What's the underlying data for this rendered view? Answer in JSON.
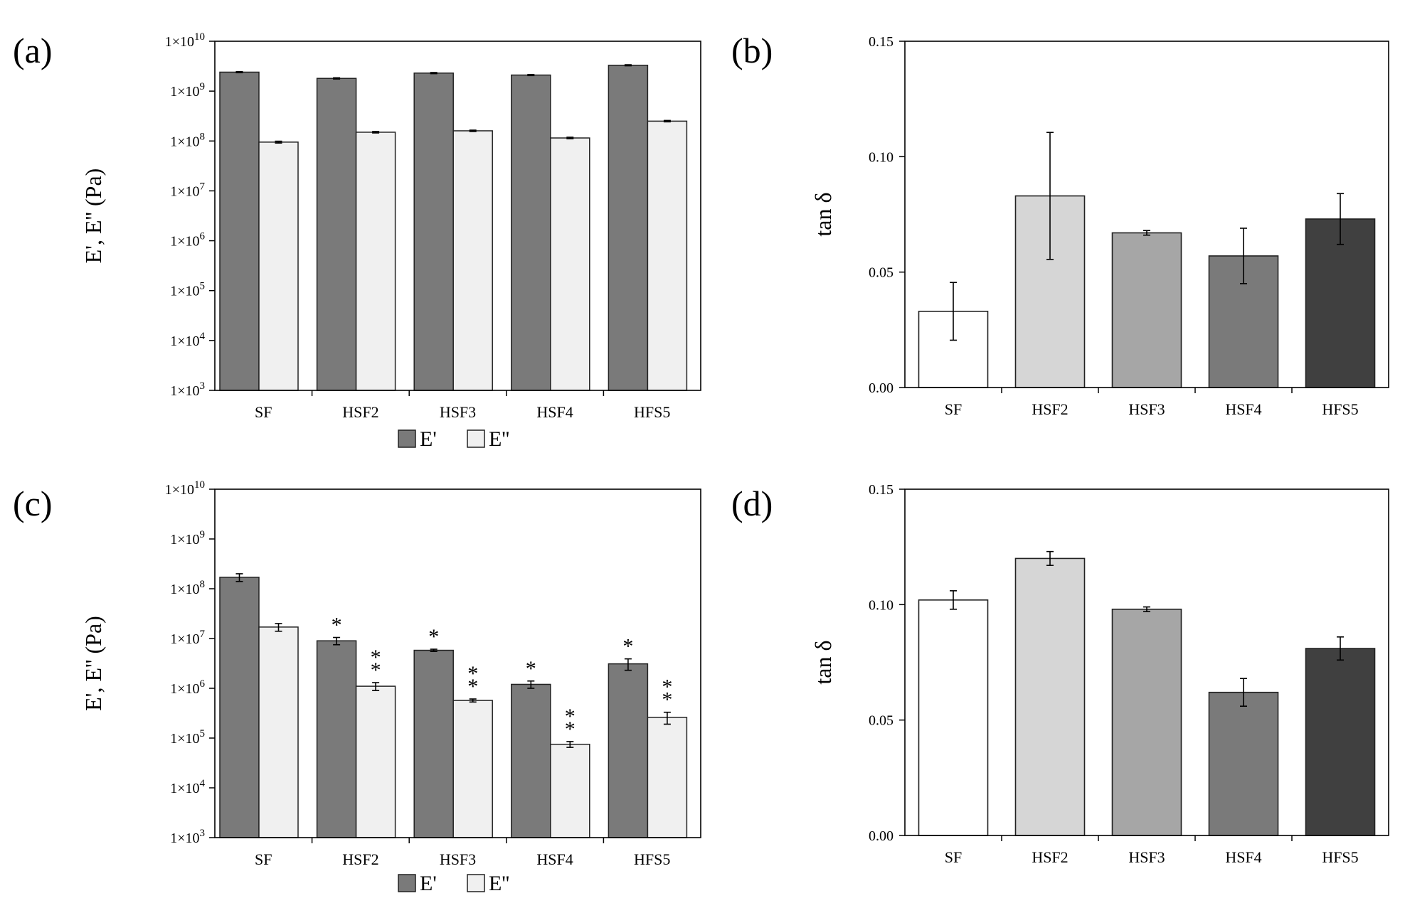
{
  "figure": {
    "charts": [
      {
        "id": "a",
        "label": "(a)",
        "kind": "log",
        "ylabel": "E', E'' (Pa)",
        "legend": [
          "E'",
          "E''"
        ],
        "legend_colors": [
          "#7a7a7a",
          "#f0f0f0"
        ]
      },
      {
        "id": "b",
        "label": "(b)",
        "kind": "linear",
        "ylabel": "tan δ",
        "colors": [
          "#ffffff",
          "#d6d6d6",
          "#a6a6a6",
          "#7a7a7a",
          "#404040"
        ]
      },
      {
        "id": "c",
        "label": "(c)",
        "kind": "log",
        "ylabel": "E', E'' (Pa)",
        "legend": [
          "E'",
          "E''"
        ],
        "legend_colors": [
          "#7a7a7a",
          "#f0f0f0"
        ]
      },
      {
        "id": "d",
        "label": "(d)",
        "kind": "linear",
        "ylabel": "tan δ",
        "colors": [
          "#ffffff",
          "#d6d6d6",
          "#a6a6a6",
          "#7a7a7a",
          "#404040"
        ]
      }
    ]
  },
  "chart_data": [
    {
      "panel": "(a)",
      "type": "bar",
      "title": "",
      "categories": [
        "SF",
        "HSF2",
        "HSF3",
        "HSF4",
        "HFS5"
      ],
      "ylabel": "E', E'' (Pa)",
      "yscale": "log",
      "ylim": [
        1000,
        10000000000
      ],
      "yticks_exp": [
        3,
        4,
        5,
        6,
        7,
        8,
        9,
        10
      ],
      "legend_position": "bottom",
      "series": [
        {
          "name": "E'",
          "values": [
            2400000000,
            1800000000,
            2300000000,
            2100000000,
            3300000000
          ],
          "errors": [
            60000000,
            50000000,
            60000000,
            50000000,
            80000000
          ]
        },
        {
          "name": "E''",
          "values": [
            95000000,
            150000000,
            160000000,
            115000000,
            250000000
          ],
          "errors": [
            4000000,
            5000000,
            5000000,
            4000000,
            8000000
          ]
        }
      ]
    },
    {
      "panel": "(b)",
      "type": "bar",
      "title": "",
      "categories": [
        "SF",
        "HSF2",
        "HSF3",
        "HSF4",
        "HFS5"
      ],
      "ylabel": "tan δ",
      "ylim": [
        0,
        0.15
      ],
      "yticks": [
        "0.00",
        "0.05",
        "0.10",
        "0.15"
      ],
      "values": [
        0.033,
        0.083,
        0.067,
        0.057,
        0.073
      ],
      "errors": [
        0.0125,
        0.0275,
        0.001,
        0.012,
        0.011
      ]
    },
    {
      "panel": "(c)",
      "type": "bar",
      "title": "",
      "categories": [
        "SF",
        "HSF2",
        "HSF3",
        "HSF4",
        "HFS5"
      ],
      "ylabel": "E', E'' (Pa)",
      "yscale": "log",
      "ylim": [
        1000,
        10000000000
      ],
      "yticks_exp": [
        3,
        4,
        5,
        6,
        7,
        8,
        9,
        10
      ],
      "legend_position": "bottom",
      "series": [
        {
          "name": "E'",
          "values": [
            170000000,
            9000000,
            5800000,
            1200000,
            3100000
          ],
          "errors": [
            30000000,
            1500000,
            300000,
            200000,
            800000
          ],
          "annotations": [
            "",
            "*",
            "*",
            "*",
            "*"
          ]
        },
        {
          "name": "E''",
          "values": [
            17000000,
            1100000,
            570000,
            75000,
            260000
          ],
          "errors": [
            3000000,
            200000,
            40000,
            10000,
            70000
          ],
          "annotations": [
            "",
            "**",
            "**",
            "**",
            "**"
          ]
        }
      ]
    },
    {
      "panel": "(d)",
      "type": "bar",
      "title": "",
      "categories": [
        "SF",
        "HSF2",
        "HSF3",
        "HSF4",
        "HFS5"
      ],
      "ylabel": "tan δ",
      "ylim": [
        0,
        0.15
      ],
      "yticks": [
        "0.00",
        "0.05",
        "0.10",
        "0.15"
      ],
      "values": [
        0.102,
        0.12,
        0.098,
        0.062,
        0.081
      ],
      "errors": [
        0.004,
        0.003,
        0.001,
        0.006,
        0.005
      ]
    }
  ]
}
